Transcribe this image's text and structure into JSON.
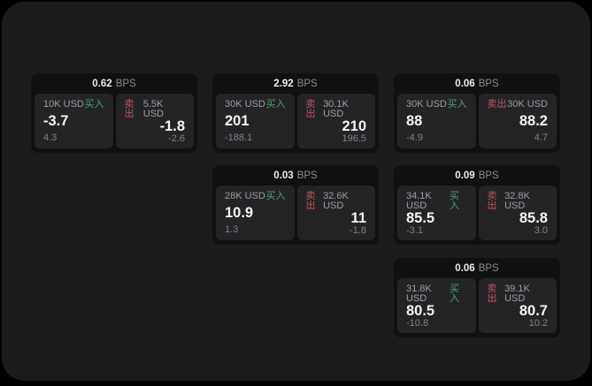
{
  "labels": {
    "bps": "BPS",
    "buy": "买入",
    "sell": "卖出"
  },
  "colors": {
    "page_bg": "#1b1b1d",
    "card_bg": "#101012",
    "tile_bg": "#242427",
    "buy": "#4f9e66",
    "sell": "#c25360"
  },
  "cards": [
    {
      "bps": "0.62",
      "buy": {
        "amount": "10K USD",
        "price": "-3.7",
        "delta": "4.3"
      },
      "sell": {
        "amount": "5.5K USD",
        "price": "-1.8",
        "delta": "-2.6"
      }
    },
    {
      "bps": "2.92",
      "buy": {
        "amount": "30K USD",
        "price": "201",
        "delta": "-188.1"
      },
      "sell": {
        "amount": "30.1K USD",
        "price": "210",
        "delta": "196.5"
      }
    },
    {
      "bps": "0.06",
      "buy": {
        "amount": "30K USD",
        "price": "88",
        "delta": "-4.9"
      },
      "sell": {
        "amount": "30K USD",
        "price": "88.2",
        "delta": "4.7"
      }
    },
    {
      "bps": "0.03",
      "buy": {
        "amount": "28K USD",
        "price": "10.9",
        "delta": "1.3"
      },
      "sell": {
        "amount": "32.6K USD",
        "price": "11",
        "delta": "-1.8"
      }
    },
    {
      "bps": "0.09",
      "buy": {
        "amount": "34.1K USD",
        "price": "85.5",
        "delta": "-3.1"
      },
      "sell": {
        "amount": "32.8K USD",
        "price": "85.8",
        "delta": "3.0"
      }
    },
    {
      "bps": "0.06",
      "buy": {
        "amount": "31.8K USD",
        "price": "80.5",
        "delta": "-10.8"
      },
      "sell": {
        "amount": "39.1K USD",
        "price": "80.7",
        "delta": "10.2"
      }
    }
  ]
}
